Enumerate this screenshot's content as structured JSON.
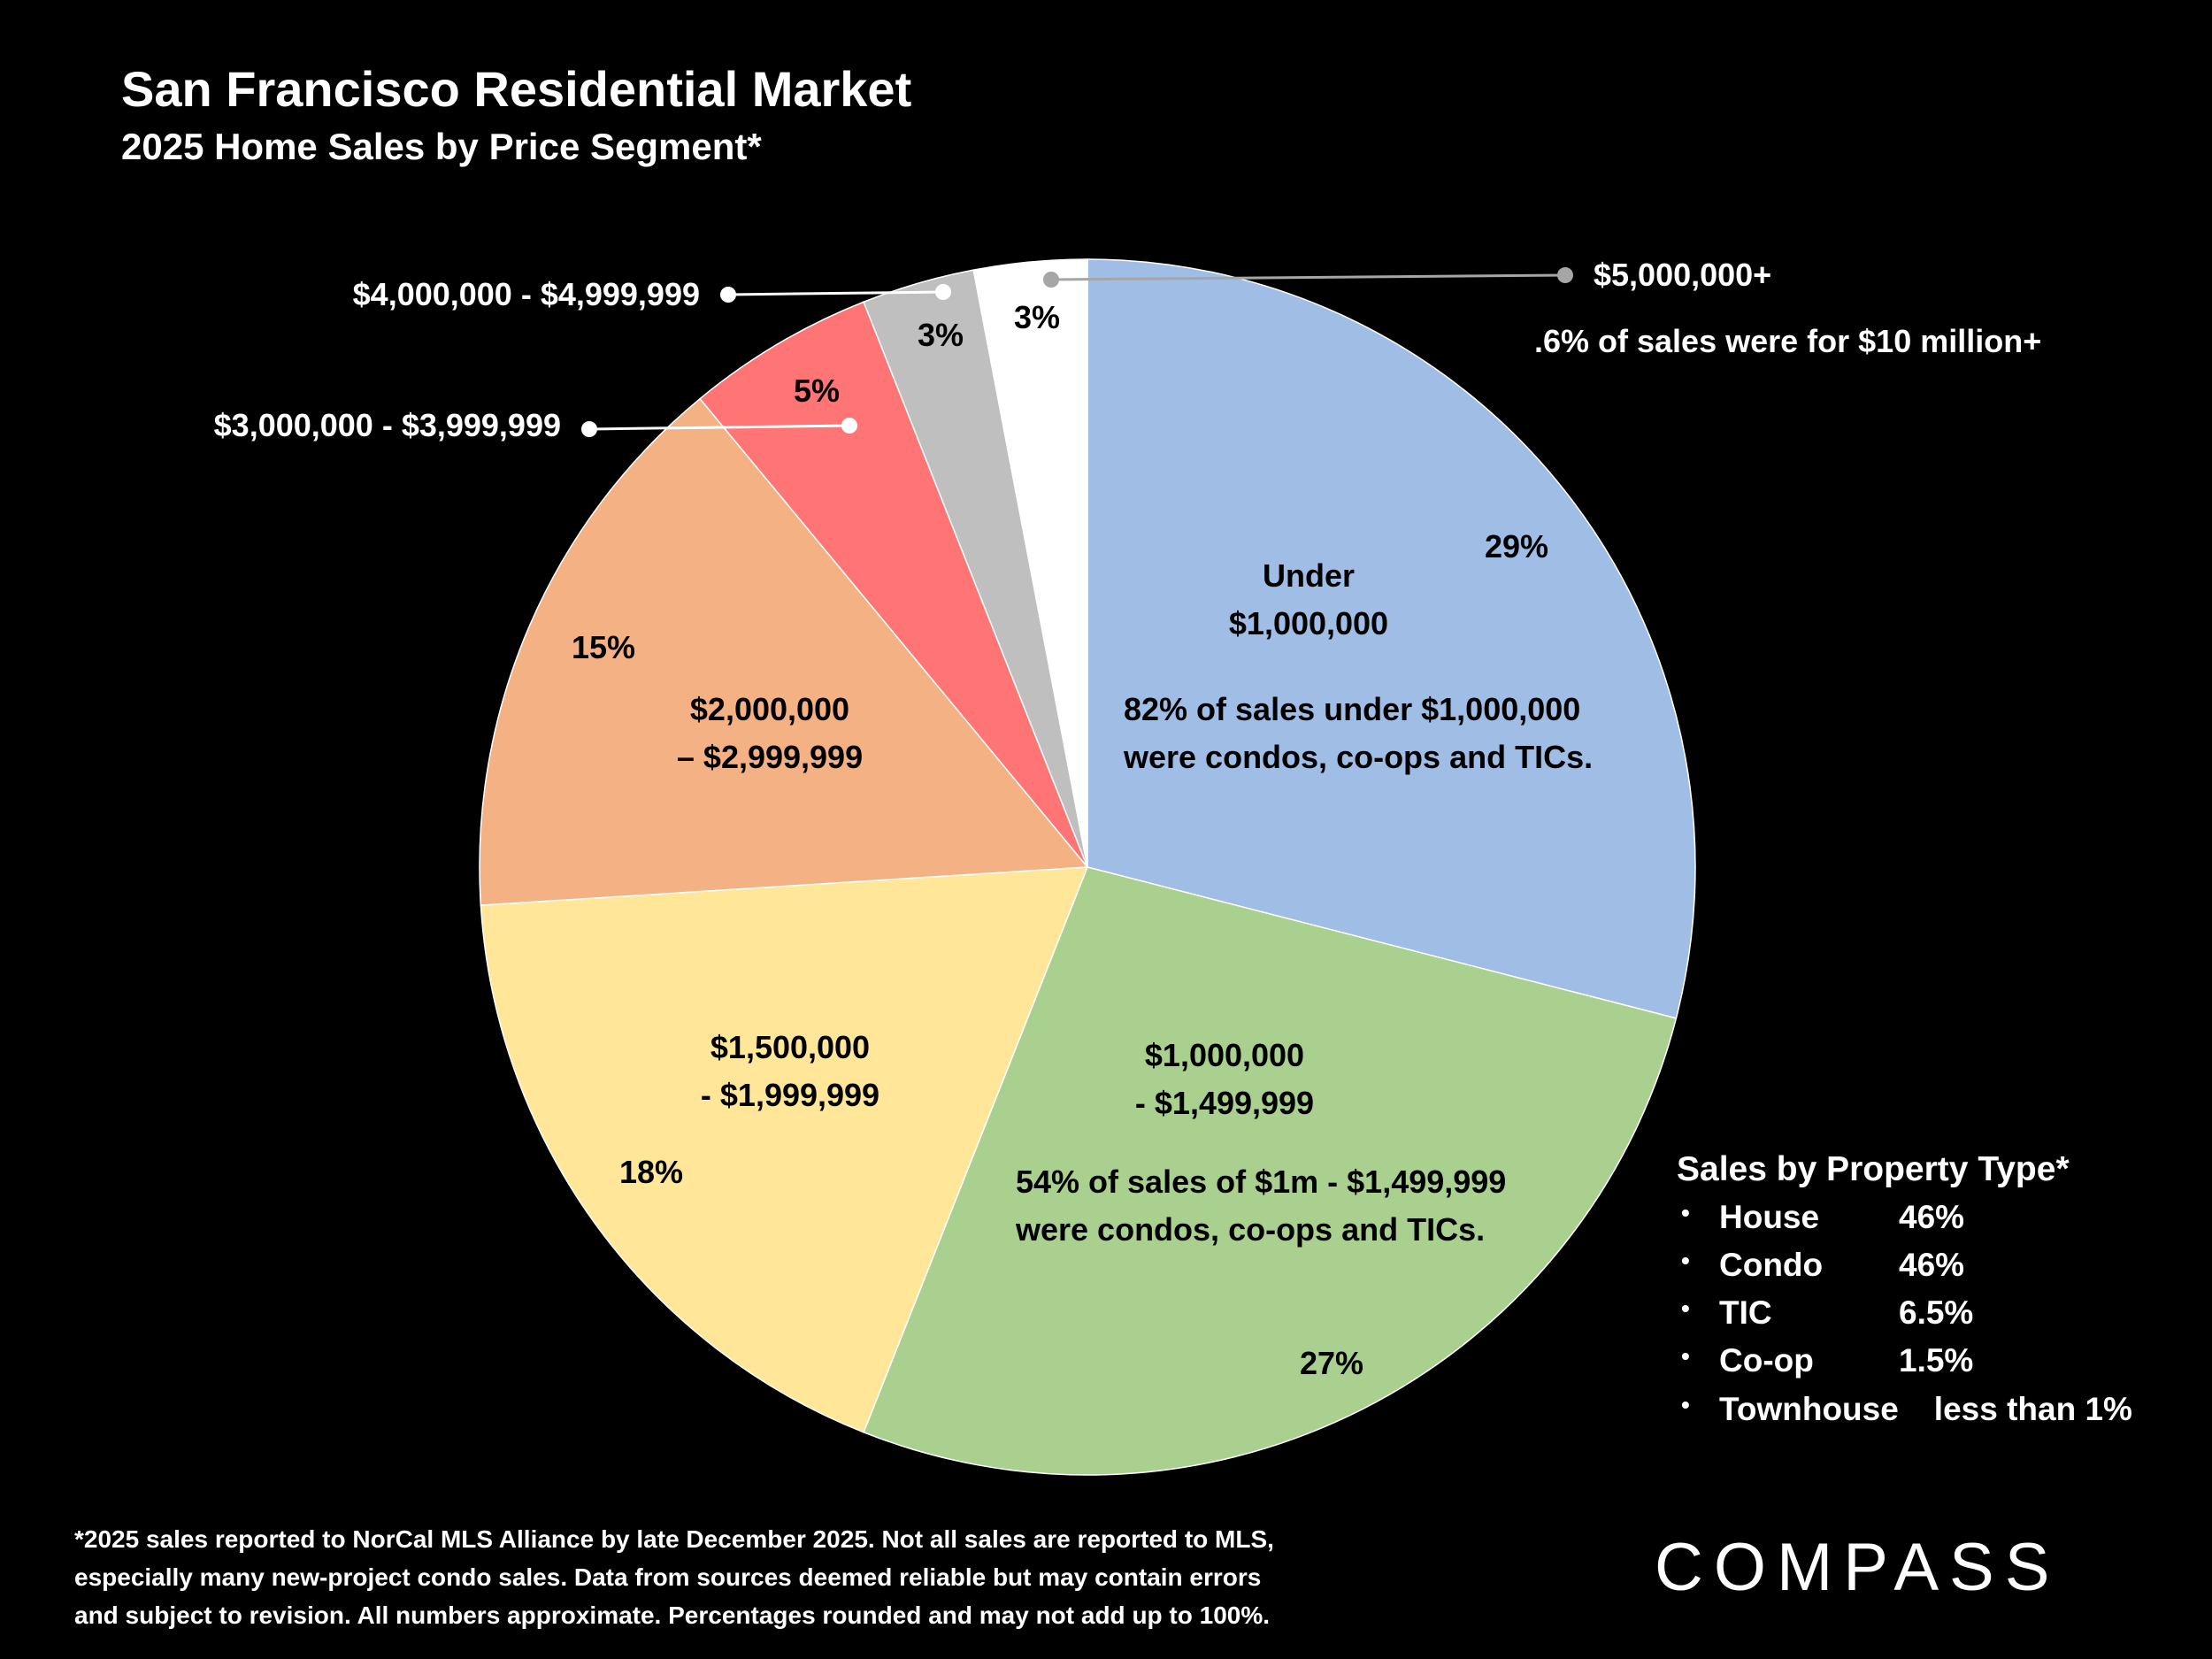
{
  "chart_data": {
    "type": "pie",
    "title": "San Francisco Residential Market",
    "subtitle": "2025 Home Sales by Price Segment*",
    "categories": [
      "Under\n$1,000,000",
      "$1,000,000\n- $1,499,999",
      "$1,500,000\n- $1,999,999",
      "$2,000,000\n– $2,999,999",
      "$3,000,000 - $3,999,999",
      "$4,000,000 - $4,999,999",
      "$5,000,000+"
    ],
    "values": [
      29,
      27,
      18,
      15,
      5,
      3,
      3
    ],
    "value_labels": [
      "29%",
      "27%",
      "18%",
      "15%",
      "5%",
      "3%",
      "3%"
    ],
    "colors": [
      "#9fbde5",
      "#a9d08e",
      "#ffe699",
      "#f4b183",
      "#ff7575",
      "#bfbfbf",
      "#ffffff"
    ],
    "annotations": [
      ".6% of sales were for $10 million+",
      "82% of sales under $1,000,000\nwere condos, co-ops and TICs.",
      "54% of sales of $1m - $1,499,999\nwere condos, co-ops and TICs."
    ]
  },
  "property_types": {
    "title": "Sales by Property Type*",
    "items": [
      {
        "name": "House",
        "share": "46%"
      },
      {
        "name": "Condo",
        "share": "46%"
      },
      {
        "name": "TIC",
        "share": "6.5%"
      },
      {
        "name": "Co-op",
        "share": "1.5%"
      },
      {
        "name": "Townhouse",
        "share": "less than 1%"
      }
    ]
  },
  "footnote_lines": [
    "*2025 sales reported to NorCal MLS Alliance by late December 2025. Not all sales are reported to MLS,",
    "especially many new-project condo sales. Data from sources deemed reliable but may contain errors",
    "and subject to revision. All numbers approximate. Percentages rounded and may not add up to 100%."
  ],
  "logo": "COMPASS"
}
